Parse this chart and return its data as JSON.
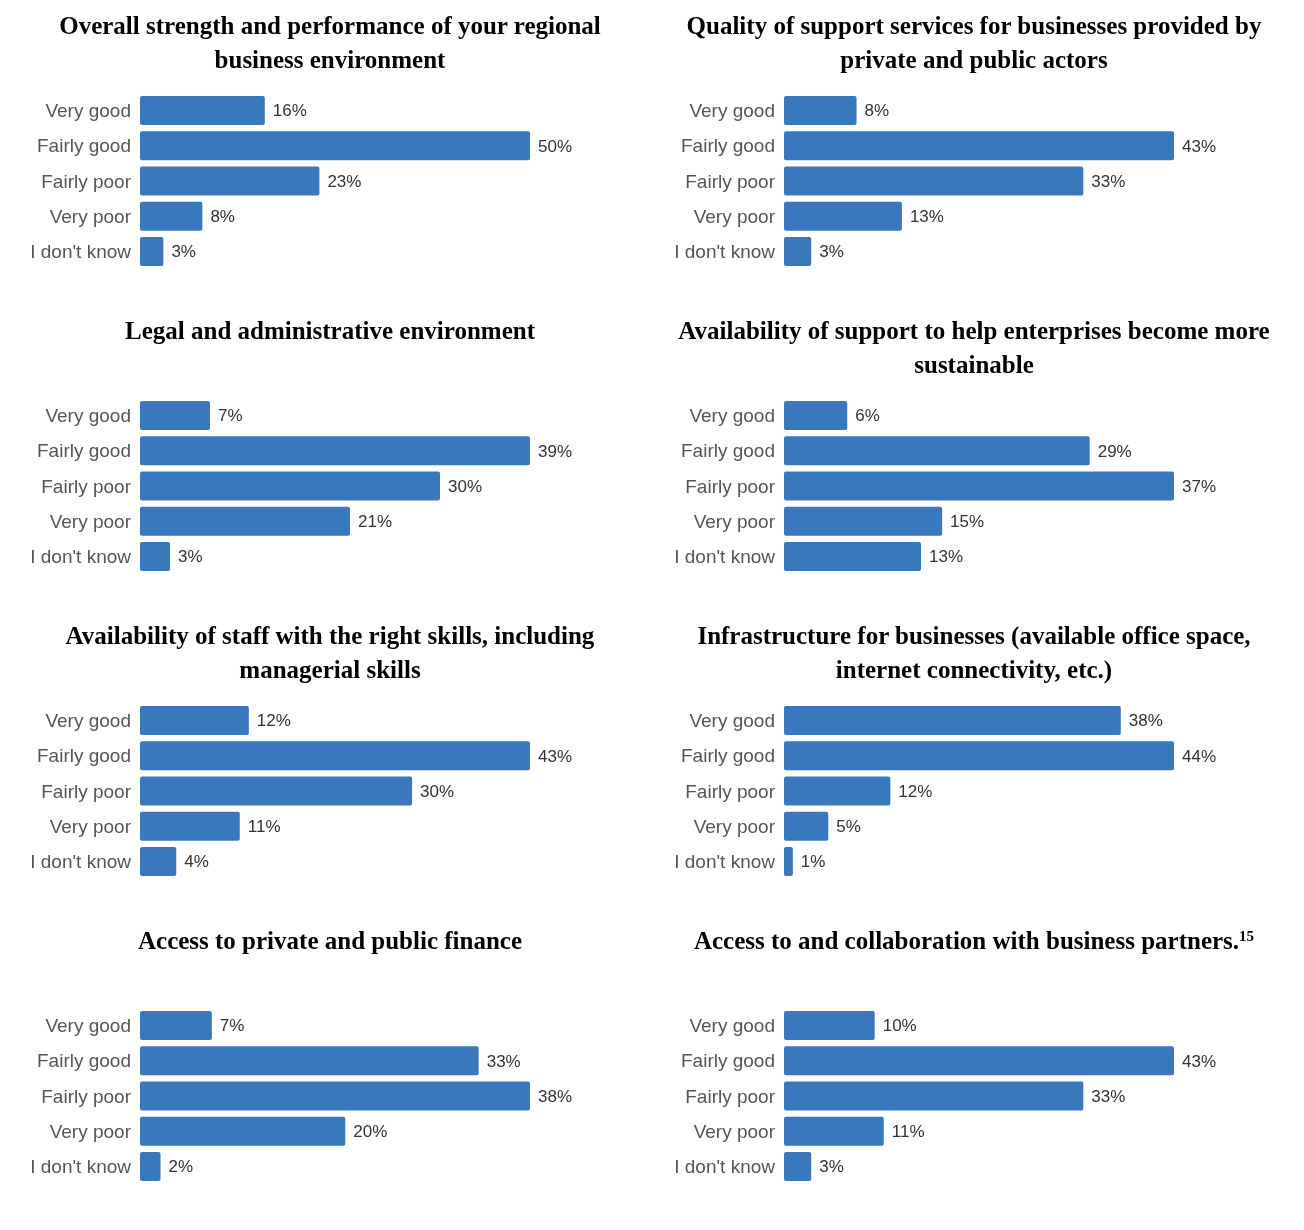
{
  "chart_data": [
    {
      "type": "bar",
      "orientation": "horizontal",
      "title": "Overall strength and performance of your regional business environment",
      "categories": [
        "Very good",
        "Fairly good",
        "Fairly poor",
        "Very poor",
        "I don't know"
      ],
      "values": [
        16,
        50,
        23,
        8,
        3
      ],
      "value_labels": [
        "16%",
        "50%",
        "23%",
        "8%",
        "3%"
      ],
      "color": "#3a78be"
    },
    {
      "type": "bar",
      "orientation": "horizontal",
      "title": "Quality of support services for businesses provided by private and public actors",
      "categories": [
        "Very good",
        "Fairly good",
        "Fairly poor",
        "Very poor",
        "I don't know"
      ],
      "values": [
        8,
        43,
        33,
        13,
        3
      ],
      "value_labels": [
        "8%",
        "43%",
        "33%",
        "13%",
        "3%"
      ],
      "color": "#3a78be"
    },
    {
      "type": "bar",
      "orientation": "horizontal",
      "title": "Legal and administrative environment",
      "categories": [
        "Very good",
        "Fairly good",
        "Fairly poor",
        "Very poor",
        "I don't know"
      ],
      "values": [
        7,
        39,
        30,
        21,
        3
      ],
      "value_labels": [
        "7%",
        "39%",
        "30%",
        "21%",
        "3%"
      ],
      "color": "#3a78be"
    },
    {
      "type": "bar",
      "orientation": "horizontal",
      "title": "Availability of support to help enterprises become more sustainable",
      "categories": [
        "Very good",
        "Fairly good",
        "Fairly poor",
        "Very poor",
        "I don't know"
      ],
      "values": [
        6,
        29,
        37,
        15,
        13
      ],
      "value_labels": [
        "6%",
        "29%",
        "37%",
        "15%",
        "13%"
      ],
      "color": "#3a78be"
    },
    {
      "type": "bar",
      "orientation": "horizontal",
      "title": "Availability of staff with the right skills, including managerial skills",
      "categories": [
        "Very good",
        "Fairly good",
        "Fairly poor",
        "Very poor",
        "I don't know"
      ],
      "values": [
        12,
        43,
        30,
        11,
        4
      ],
      "value_labels": [
        "12%",
        "43%",
        "30%",
        "11%",
        "4%"
      ],
      "color": "#3a78be"
    },
    {
      "type": "bar",
      "orientation": "horizontal",
      "title": "Infrastructure for businesses (available office space, internet connectivity, etc.)",
      "categories": [
        "Very good",
        "Fairly good",
        "Fairly poor",
        "Very poor",
        "I don't know"
      ],
      "values": [
        38,
        44,
        12,
        5,
        1
      ],
      "value_labels": [
        "38%",
        "44%",
        "12%",
        "5%",
        "1%"
      ],
      "color": "#3a78be"
    },
    {
      "type": "bar",
      "orientation": "horizontal",
      "title": "Access to private and public finance",
      "categories": [
        "Very good",
        "Fairly good",
        "Fairly poor",
        "Very poor",
        "I don't know"
      ],
      "values": [
        7,
        33,
        38,
        20,
        2
      ],
      "value_labels": [
        "7%",
        "33%",
        "38%",
        "20%",
        "2%"
      ],
      "color": "#3a78be"
    },
    {
      "type": "bar",
      "orientation": "horizontal",
      "title": "Access to and collaboration with business partners.$^{15}$",
      "categories": [
        "Very good",
        "Fairly good",
        "Fairly poor",
        "Very poor",
        "I don't know"
      ],
      "values": [
        10,
        43,
        33,
        11,
        3
      ],
      "value_labels": [
        "10%",
        "43%",
        "33%",
        "11%",
        "3%"
      ],
      "color": "#3a78be"
    }
  ]
}
